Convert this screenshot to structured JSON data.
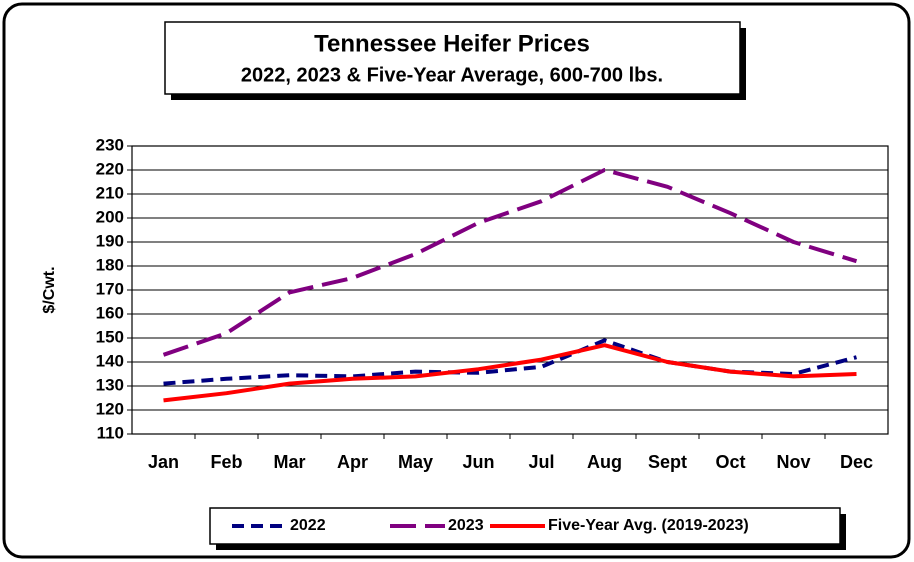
{
  "chart_data": {
    "type": "line",
    "title": "Tennessee Heifer Prices",
    "subtitle": "2022, 2023 & Five-Year Average, 600-700 lbs.",
    "y_label": "$/Cwt.",
    "categories": [
      "Jan",
      "Feb",
      "Mar",
      "Apr",
      "May",
      "Jun",
      "Jul",
      "Aug",
      "Sept",
      "Oct",
      "Nov",
      "Dec"
    ],
    "series": [
      {
        "name": "2022",
        "color": "#000080",
        "line_style": "dashed",
        "values": [
          131,
          133,
          134.5,
          134,
          136,
          135.5,
          138,
          149,
          140,
          136,
          135,
          142
        ]
      },
      {
        "name": "2023",
        "color": "#800080",
        "line_style": "long-dashed",
        "values": [
          143,
          152,
          169,
          175,
          185,
          198,
          207,
          220,
          213,
          202,
          190,
          182
        ]
      },
      {
        "name": "Five-Year Avg. (2019-2023)",
        "color": "#ff0000",
        "line_style": "solid",
        "values": [
          124,
          127,
          131,
          133,
          134,
          137,
          141,
          147,
          140,
          136,
          134,
          135
        ]
      }
    ],
    "ylim": [
      110,
      230
    ],
    "yticks": [
      110,
      120,
      130,
      140,
      150,
      160,
      170,
      180,
      190,
      200,
      210,
      220,
      230
    ],
    "grid": true,
    "legend": "bottom"
  }
}
